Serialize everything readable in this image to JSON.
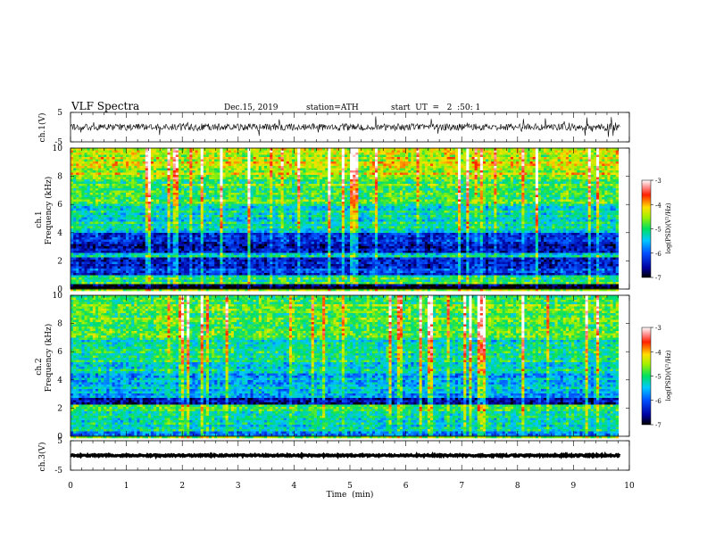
{
  "header": {
    "title": "VLF  Spectra",
    "date": "Dec.15, 2019",
    "station": "station=ATH",
    "start": "start  UT  =   2  :50: 1"
  },
  "chart_data": [
    {
      "type": "line",
      "panel": "ch1-waveform",
      "ylabel": "ch.1(V)",
      "ylim": [
        -5,
        5
      ],
      "yticks": [
        5,
        -5
      ],
      "xlim": [
        0,
        10
      ],
      "duration_min": 9.83,
      "baseline_v": 0.0,
      "noise_amplitude_v": 1.2,
      "spike_amplitude_v": 3.0
    },
    {
      "type": "heatmap",
      "panel": "ch1-spectrogram",
      "ylabel": "ch.1\nFrequency (kHz)",
      "ylabel_top": "ch.1",
      "ylabel_bottom": "Frequency (kHz)",
      "ylim": [
        0,
        10
      ],
      "yticks": [
        0,
        2,
        4,
        6,
        8,
        10
      ],
      "xlim": [
        0,
        10
      ],
      "duration_min": 9.83,
      "colorbar": {
        "label": "log(PSD)(V²/Hz)",
        "range": [
          -7,
          -3
        ],
        "ticks": [
          -3,
          -4,
          -5,
          -6,
          -7
        ]
      },
      "bands_khz": [
        {
          "from": 0.0,
          "to": 0.35,
          "level": -7.0
        },
        {
          "from": 0.35,
          "to": 1.0,
          "level": -5.0
        },
        {
          "from": 1.0,
          "to": 2.2,
          "level": -6.2
        },
        {
          "from": 2.2,
          "to": 2.6,
          "level": -5.4
        },
        {
          "from": 2.6,
          "to": 4.0,
          "level": -6.4
        },
        {
          "from": 4.0,
          "to": 6.0,
          "level": -5.2
        },
        {
          "from": 6.0,
          "to": 8.0,
          "level": -4.8
        },
        {
          "from": 8.0,
          "to": 10.0,
          "level": -4.4
        }
      ]
    },
    {
      "type": "heatmap",
      "panel": "ch2-spectrogram",
      "ylabel": "ch.2\nFrequency (kHz)",
      "ylabel_top": "ch.2",
      "ylabel_bottom": "Frequency (kHz)",
      "ylim": [
        0,
        10
      ],
      "yticks": [
        0,
        2,
        4,
        6,
        8,
        10
      ],
      "xlim": [
        0,
        10
      ],
      "duration_min": 9.83,
      "colorbar": {
        "label": "log(PSD)(V²/Hz)",
        "range": [
          -7,
          -3
        ],
        "ticks": [
          -3,
          -4,
          -5,
          -6,
          -7
        ]
      },
      "bands_khz": [
        {
          "from": 0.0,
          "to": 0.4,
          "level": -5.6
        },
        {
          "from": 0.4,
          "to": 1.8,
          "level": -5.3
        },
        {
          "from": 1.8,
          "to": 2.2,
          "level": -5.0
        },
        {
          "from": 2.2,
          "to": 2.8,
          "level": -6.6
        },
        {
          "from": 2.8,
          "to": 4.5,
          "level": -5.5
        },
        {
          "from": 4.5,
          "to": 7.0,
          "level": -5.2
        },
        {
          "from": 7.0,
          "to": 10.0,
          "level": -4.8
        }
      ]
    },
    {
      "type": "line",
      "panel": "ch3-waveform",
      "ylabel": "ch.3(V)",
      "ylim": [
        -5,
        5
      ],
      "yticks": [
        5,
        -5
      ],
      "xlim": [
        0,
        10
      ],
      "duration_min": 9.83,
      "baseline_v": 0.0,
      "noise_amplitude_v": 0.25,
      "xlabel": "Time  (min)",
      "xticks": [
        0,
        1,
        2,
        3,
        4,
        5,
        6,
        7,
        8,
        9,
        10
      ]
    }
  ]
}
